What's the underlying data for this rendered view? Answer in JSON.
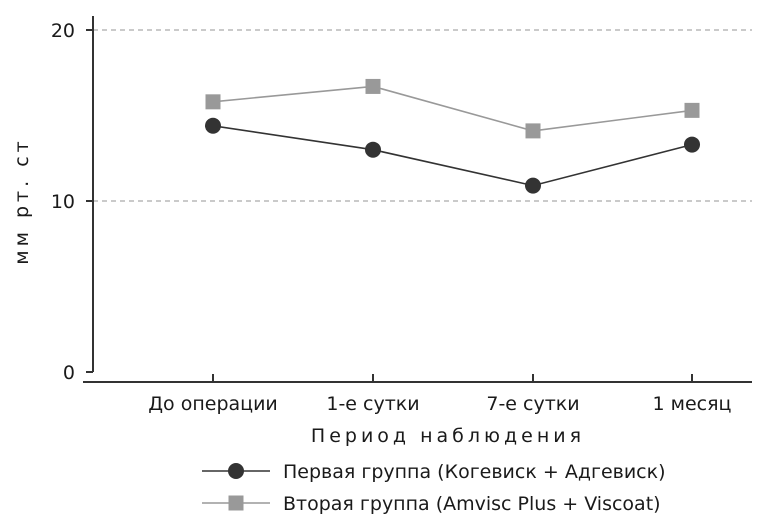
{
  "chart_data": {
    "type": "line",
    "categories": [
      "До операции",
      "1-е сутки",
      "7-е сутки",
      "1 месяц"
    ],
    "series": [
      {
        "name": "Первая группа (Когевиск + Адгевиск)",
        "values": [
          14.4,
          13.0,
          10.9,
          13.3
        ],
        "color": "#333333",
        "marker": "circle"
      },
      {
        "name": "Вторая группа (Amvisc Plus + Viscoat)",
        "values": [
          15.8,
          16.7,
          14.1,
          15.3
        ],
        "color": "#999999",
        "marker": "square"
      }
    ],
    "title": "",
    "xlabel": "Период наблюдения",
    "ylabel": "мм рт. ст",
    "ylim": [
      0,
      20
    ],
    "yticks": [
      "0",
      "10",
      "20"
    ],
    "grid": "horizontal dashed at 10 and 20",
    "legend": "bottom-center"
  }
}
